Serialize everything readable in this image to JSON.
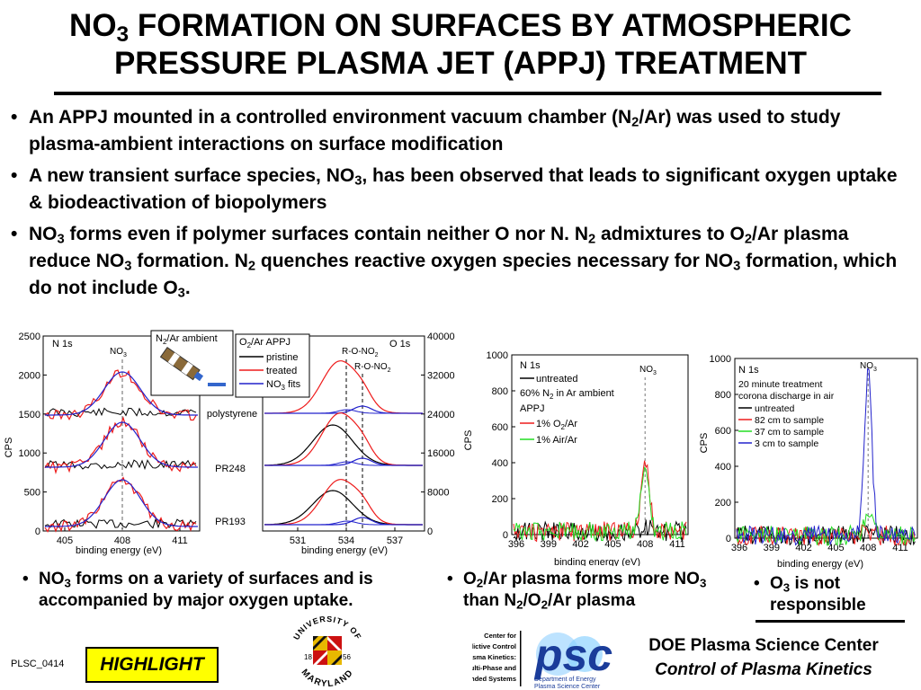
{
  "title": {
    "line1_pre": "NO",
    "line1_sub": "3",
    "line1_post": " FORMATION ON SURFACES BY ATMOSPHERIC",
    "line2": "PRESSURE PLASMA JET (APPJ) TREATMENT"
  },
  "bullets": [
    {
      "segs": [
        "An APPJ mounted in a controlled environment vacuum chamber (N",
        "2",
        "/Ar) was used to study plasma-ambient interactions on surface modification"
      ]
    },
    {
      "segs": [
        "A new transient surface species, NO",
        "3",
        ", has been observed that leads to significant oxygen uptake & biodeactivation of biopolymers"
      ]
    },
    {
      "segs": [
        "NO",
        "3",
        " forms even if polymer surfaces contain neither O nor N. N",
        "2",
        " admixtures to O",
        "2",
        "/Ar plasma reduce NO",
        "3",
        " formation.  N",
        "2",
        " quenches reactive oxygen species necessary for NO",
        "3",
        " formation, which do not include O",
        "3",
        "."
      ]
    }
  ],
  "chart_data": [
    {
      "type": "line",
      "panel": "N 1s / O 1s XPS on polymers",
      "xlabel": "binding energy (eV)",
      "ylabel": "CPS",
      "left_yticks": [
        "0",
        "500",
        "1000",
        "1500",
        "2000",
        "2500"
      ],
      "right_yticks": [
        "0",
        "8000",
        "16000",
        "24000",
        "32000",
        "40000"
      ],
      "n1s_label": "N 1s",
      "o1s_label": "O 1s",
      "n1s_xticks": [
        "405",
        "408",
        "411"
      ],
      "o1s_xticks": [
        "531",
        "534",
        "537"
      ],
      "peak_label": "NO",
      "peak_label_sub": "3",
      "samples": [
        "polystyrene",
        "PR248",
        "PR193"
      ],
      "inset": {
        "label_pre": "N",
        "label_sub": "2",
        "label_post": "/Ar ambient"
      },
      "legend_title_pre": "O",
      "legend_title_sub": "2",
      "legend_title_post": "/Ar APPJ",
      "legend": [
        {
          "name": "pristine",
          "color": "#000000"
        },
        {
          "name": "treated",
          "color": "#ee1c1c"
        },
        {
          "name": "NO3 fits",
          "name_pre": "NO",
          "name_sub": "3",
          "name_post": " fits",
          "color": "#2222cc"
        }
      ],
      "annotations": [
        {
          "pre": "R-O-NO",
          "sub": "2"
        },
        {
          "pre": "R-O-NO",
          "sub": "2"
        }
      ]
    },
    {
      "type": "line",
      "panel": "N 1s, 60% N2 in Ar ambient",
      "xlabel": "binding energy (eV)",
      "ylabel": "CPS",
      "yticks": [
        "0",
        "200",
        "400",
        "600",
        "800",
        "1000"
      ],
      "xticks": [
        "396",
        "399",
        "402",
        "405",
        "408",
        "411"
      ],
      "ylim": [
        0,
        1000
      ],
      "header": "N 1s",
      "peak_label": "NO",
      "peak_label_sub": "3",
      "legend": [
        {
          "name": "untreated",
          "color": "#000000"
        },
        {
          "name_pre": "60% N",
          "name_sub": "2",
          "name_post": " in Ar ambient",
          "color": null
        },
        {
          "name": "APPJ",
          "color": null
        },
        {
          "name_pre": "1% O",
          "name_sub": "2",
          "name_post": "/Ar",
          "color": "#ee1c1c"
        },
        {
          "name": "1% Air/Ar",
          "color": "#22dd22"
        }
      ],
      "series": [
        {
          "name": "untreated",
          "peak_x": 408,
          "peak_y": 25
        },
        {
          "name": "1% O2/Ar",
          "peak_x": 408,
          "peak_y": 405
        },
        {
          "name": "1% Air/Ar",
          "peak_x": 408,
          "peak_y": 360
        }
      ]
    },
    {
      "type": "line",
      "panel": "N 1s, corona discharge",
      "xlabel": "binding energy (eV)",
      "ylabel": "CPS",
      "yticks": [
        "0",
        "200",
        "400",
        "600",
        "800",
        "1000"
      ],
      "xticks": [
        "396",
        "399",
        "402",
        "405",
        "408",
        "411"
      ],
      "ylim": [
        0,
        1000
      ],
      "header": "N 1s",
      "peak_label": "NO",
      "peak_label_sub": "3",
      "legend": [
        {
          "name": "20 minute treatment",
          "color": null
        },
        {
          "name": "corona discharge in air",
          "color": null
        },
        {
          "name": "untreated",
          "color": "#000000"
        },
        {
          "name": "82 cm to sample",
          "color": "#ee1c1c"
        },
        {
          "name": "37 cm to sample",
          "color": "#22dd22"
        },
        {
          "name": "3 cm to sample",
          "color": "#2222cc"
        }
      ],
      "series": [
        {
          "name": "untreated",
          "peak_x": 408,
          "peak_y": 25
        },
        {
          "name": "82 cm to sample",
          "peak_x": 408,
          "peak_y": 40
        },
        {
          "name": "37 cm to sample",
          "peak_x": 408,
          "peak_y": 160
        },
        {
          "name": "3 cm to sample",
          "peak_x": 408,
          "peak_y": 910
        }
      ]
    }
  ],
  "captions": {
    "c1": {
      "segs": [
        "NO",
        "3",
        " forms on a variety of surfaces and is accompanied by major oxygen uptake."
      ]
    },
    "c2": {
      "segs": [
        "O",
        "2",
        "/Ar plasma forms more NO",
        "3",
        " than N",
        "2",
        "/O",
        "2",
        "/Ar plasma"
      ]
    },
    "c3": {
      "segs": [
        "O",
        "3",
        " is not responsible"
      ]
    }
  },
  "logos": {
    "umd_top": "UNIVERSITY OF",
    "umd_bottom": "MARYLAND",
    "umd_year_left": "18",
    "umd_year_right": "56",
    "center_text": [
      "Center for",
      "Predictive Control",
      "of Plasma Kinetics:",
      "Multi-Phase and",
      "Bounded Systems"
    ],
    "psc": "psc",
    "psc_sub": [
      "Department of Energy",
      "Plasma Science Center"
    ]
  },
  "footer": {
    "plsc_id": "PLSC_0414",
    "highlight": "HIGHLIGHT",
    "doe_line1": "DOE Plasma Science Center",
    "doe_line2": "Control of Plasma Kinetics"
  }
}
